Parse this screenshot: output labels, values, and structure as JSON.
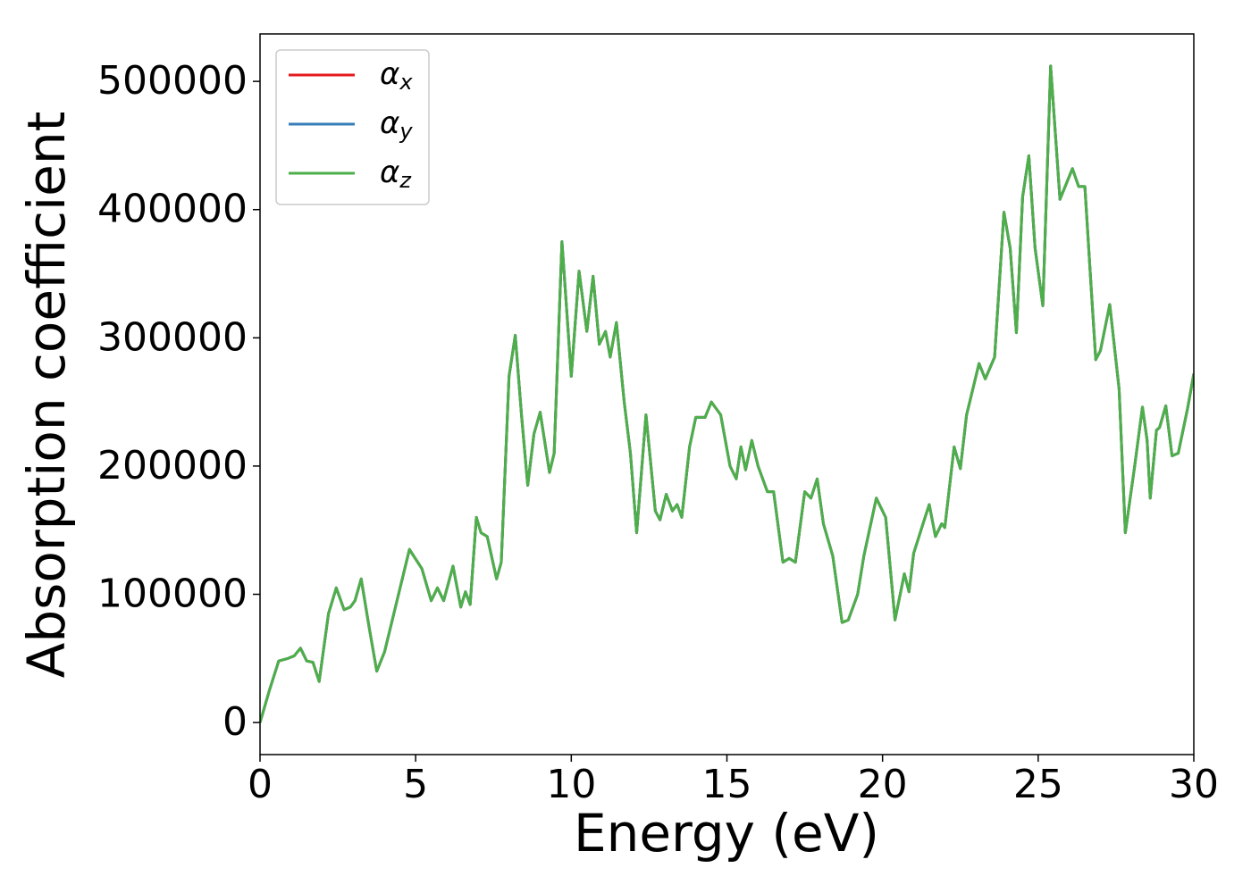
{
  "chart_data": {
    "type": "line",
    "xlabel": "Energy (eV)",
    "ylabel": "Absorption coefficient",
    "x": [
      0,
      0.3,
      0.6,
      0.9,
      1.1,
      1.3,
      1.5,
      1.7,
      1.9,
      2.2,
      2.45,
      2.7,
      2.9,
      3.05,
      3.25,
      3.5,
      3.75,
      4.0,
      4.4,
      4.8,
      5.2,
      5.5,
      5.7,
      5.9,
      6.2,
      6.45,
      6.6,
      6.75,
      6.95,
      7.1,
      7.3,
      7.6,
      7.75,
      8.0,
      8.2,
      8.4,
      8.6,
      8.8,
      9.0,
      9.3,
      9.45,
      9.7,
      10.0,
      10.25,
      10.5,
      10.7,
      10.9,
      11.1,
      11.25,
      11.45,
      11.7,
      11.9,
      12.1,
      12.4,
      12.7,
      12.85,
      13.05,
      13.25,
      13.4,
      13.55,
      13.8,
      14.0,
      14.3,
      14.5,
      14.8,
      15.1,
      15.3,
      15.45,
      15.6,
      15.8,
      16.0,
      16.3,
      16.5,
      16.8,
      17.0,
      17.2,
      17.5,
      17.7,
      17.9,
      18.1,
      18.4,
      18.7,
      18.9,
      19.2,
      19.4,
      19.8,
      20.1,
      20.4,
      20.7,
      20.85,
      21.0,
      21.3,
      21.5,
      21.7,
      21.9,
      22.0,
      22.3,
      22.5,
      22.7,
      23.1,
      23.3,
      23.6,
      23.9,
      24.1,
      24.3,
      24.5,
      24.7,
      24.9,
      25.15,
      25.4,
      25.7,
      25.9,
      26.1,
      26.3,
      26.5,
      26.7,
      26.85,
      27.0,
      27.3,
      27.6,
      27.8,
      28.1,
      28.35,
      28.5,
      28.6,
      28.8,
      28.9,
      29.1,
      29.3,
      29.5,
      29.8,
      30.0
    ],
    "series": [
      {
        "name": "αx",
        "color": "#e41a1c",
        "values": [
          0,
          25000,
          48000,
          50000,
          52000,
          58000,
          48000,
          47000,
          32000,
          85000,
          105000,
          88000,
          90000,
          95000,
          112000,
          75000,
          40000,
          55000,
          95000,
          135000,
          120000,
          95000,
          105000,
          95000,
          122000,
          90000,
          102000,
          92000,
          160000,
          148000,
          145000,
          112000,
          125000,
          270000,
          302000,
          240000,
          185000,
          225000,
          242000,
          195000,
          210000,
          375000,
          270000,
          352000,
          305000,
          348000,
          295000,
          305000,
          285000,
          312000,
          250000,
          210000,
          148000,
          240000,
          165000,
          158000,
          178000,
          165000,
          170000,
          160000,
          215000,
          238000,
          238000,
          250000,
          240000,
          200000,
          190000,
          215000,
          197000,
          220000,
          200000,
          180000,
          180000,
          125000,
          128000,
          125000,
          180000,
          175000,
          190000,
          155000,
          130000,
          78000,
          80000,
          100000,
          130000,
          175000,
          160000,
          80000,
          116000,
          102000,
          132000,
          155000,
          170000,
          145000,
          155000,
          152000,
          215000,
          198000,
          240000,
          280000,
          268000,
          285000,
          398000,
          370000,
          304000,
          410000,
          442000,
          370000,
          325000,
          512000,
          408000,
          420000,
          432000,
          418000,
          418000,
          340000,
          283000,
          290000,
          326000,
          260000,
          148000,
          200000,
          246000,
          220000,
          175000,
          228000,
          230000,
          247000,
          208000,
          210000,
          245000,
          272000
        ]
      },
      {
        "name": "αy",
        "color": "#377eb8",
        "values": [
          0,
          25000,
          48000,
          50000,
          52000,
          58000,
          48000,
          47000,
          32000,
          85000,
          105000,
          88000,
          90000,
          95000,
          112000,
          75000,
          40000,
          55000,
          95000,
          135000,
          120000,
          95000,
          105000,
          95000,
          122000,
          90000,
          102000,
          92000,
          160000,
          148000,
          145000,
          112000,
          125000,
          270000,
          302000,
          240000,
          185000,
          225000,
          242000,
          195000,
          210000,
          375000,
          270000,
          352000,
          305000,
          348000,
          295000,
          305000,
          285000,
          312000,
          250000,
          210000,
          148000,
          240000,
          165000,
          158000,
          178000,
          165000,
          170000,
          160000,
          215000,
          238000,
          238000,
          250000,
          240000,
          200000,
          190000,
          215000,
          197000,
          220000,
          200000,
          180000,
          180000,
          125000,
          128000,
          125000,
          180000,
          175000,
          190000,
          155000,
          130000,
          78000,
          80000,
          100000,
          130000,
          175000,
          160000,
          80000,
          116000,
          102000,
          132000,
          155000,
          170000,
          145000,
          155000,
          152000,
          215000,
          198000,
          240000,
          280000,
          268000,
          285000,
          398000,
          370000,
          304000,
          410000,
          442000,
          370000,
          325000,
          512000,
          408000,
          420000,
          432000,
          418000,
          418000,
          340000,
          283000,
          290000,
          326000,
          260000,
          148000,
          200000,
          246000,
          220000,
          175000,
          228000,
          230000,
          247000,
          208000,
          210000,
          245000,
          272000
        ]
      },
      {
        "name": "αz",
        "color": "#4daf4a",
        "values": [
          0,
          25000,
          48000,
          50000,
          52000,
          58000,
          48000,
          47000,
          32000,
          85000,
          105000,
          88000,
          90000,
          95000,
          112000,
          75000,
          40000,
          55000,
          95000,
          135000,
          120000,
          95000,
          105000,
          95000,
          122000,
          90000,
          102000,
          92000,
          160000,
          148000,
          145000,
          112000,
          125000,
          270000,
          302000,
          240000,
          185000,
          225000,
          242000,
          195000,
          210000,
          375000,
          270000,
          352000,
          305000,
          348000,
          295000,
          305000,
          285000,
          312000,
          250000,
          210000,
          148000,
          240000,
          165000,
          158000,
          178000,
          165000,
          170000,
          160000,
          215000,
          238000,
          238000,
          250000,
          240000,
          200000,
          190000,
          215000,
          197000,
          220000,
          200000,
          180000,
          180000,
          125000,
          128000,
          125000,
          180000,
          175000,
          190000,
          155000,
          130000,
          78000,
          80000,
          100000,
          130000,
          175000,
          160000,
          80000,
          116000,
          102000,
          132000,
          155000,
          170000,
          145000,
          155000,
          152000,
          215000,
          198000,
          240000,
          280000,
          268000,
          285000,
          398000,
          370000,
          304000,
          410000,
          442000,
          370000,
          325000,
          512000,
          408000,
          420000,
          432000,
          418000,
          418000,
          340000,
          283000,
          290000,
          326000,
          260000,
          148000,
          200000,
          246000,
          220000,
          175000,
          228000,
          230000,
          247000,
          208000,
          210000,
          245000,
          272000
        ]
      }
    ],
    "xlim": [
      0,
      30
    ],
    "xticks": [
      0,
      5,
      10,
      15,
      20,
      25,
      30
    ],
    "ylim": [
      -25000,
      537000
    ],
    "yticks": [
      0,
      100000,
      200000,
      300000,
      400000,
      500000
    ],
    "legend": "upper left"
  }
}
